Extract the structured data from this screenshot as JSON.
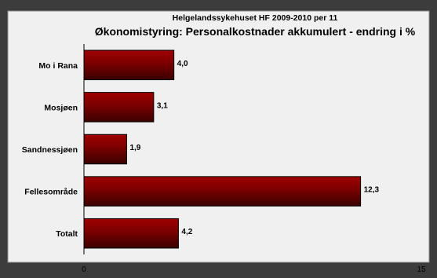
{
  "chart_data": {
    "type": "bar",
    "orientation": "horizontal",
    "title": "Helgelandssykehuset HF 2009-2010 per 11",
    "subtitle": "Økonomistyring: Personalkostnader akkumulert - endring i %",
    "categories": [
      "Mo i Rana",
      "Mosjøen",
      "Sandnessjøen",
      "Fellesområde",
      "Totalt"
    ],
    "values": [
      4.0,
      3.1,
      1.9,
      12.3,
      4.2
    ],
    "value_labels": [
      "4,0",
      "3,1",
      "1,9",
      "12,3",
      "4,2"
    ],
    "xlim": [
      0,
      15
    ],
    "xticks": [
      {
        "value": 0,
        "label": "0"
      },
      {
        "value": 15,
        "label": "15"
      }
    ],
    "grid": false,
    "legend": "none",
    "bar_color": "#800000",
    "plot_background": "#f0f0f0",
    "frame_background": "#3c3c3c"
  }
}
